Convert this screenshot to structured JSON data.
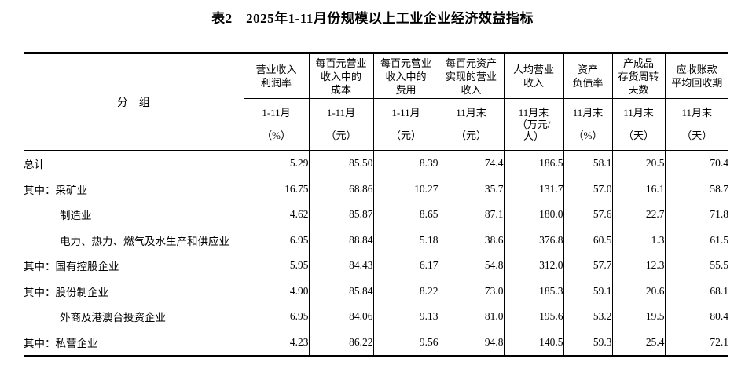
{
  "title": "表2　2025年1-11月份规模以上工业企业经济效益指标",
  "colors": {
    "text": "#000000",
    "border": "#000000",
    "background": "#ffffff"
  },
  "table": {
    "group_header": "分　组",
    "columns": [
      {
        "name": "营业收入\n利润率",
        "period": "1-11月",
        "unit": "（%）"
      },
      {
        "name": "每百元营业\n收入中的\n成本",
        "period": "1-11月",
        "unit": "（元）"
      },
      {
        "name": "每百元营业\n收入中的\n费用",
        "period": "1-11月",
        "unit": "（元）"
      },
      {
        "name": "每百元资产\n实现的营业\n收入",
        "period": "11月末",
        "unit": "（元）"
      },
      {
        "name": "人均营业\n收入",
        "period": "11月末",
        "unit": "（万元/\n人）"
      },
      {
        "name": "资产\n负债率",
        "period": "11月末",
        "unit": "（%）"
      },
      {
        "name": "产成品\n存货周转\n天数",
        "period": "11月末",
        "unit": "（天）"
      },
      {
        "name": "应收账款\n平均回收期",
        "period": "11月末",
        "unit": "（天）"
      }
    ],
    "rows": [
      {
        "label": "总计",
        "indent": false,
        "values": [
          "5.29",
          "85.50",
          "8.39",
          "74.4",
          "186.5",
          "58.1",
          "20.5",
          "70.4"
        ]
      },
      {
        "label": "其中：采矿业",
        "indent": false,
        "values": [
          "16.75",
          "68.86",
          "10.27",
          "35.7",
          "131.7",
          "57.0",
          "16.1",
          "58.7"
        ]
      },
      {
        "label": "制造业",
        "indent": true,
        "values": [
          "4.62",
          "85.87",
          "8.65",
          "87.1",
          "180.0",
          "57.6",
          "22.7",
          "71.8"
        ]
      },
      {
        "label": "电力、热力、燃气及水生产和供应业",
        "indent": true,
        "values": [
          "6.95",
          "88.84",
          "5.18",
          "38.6",
          "376.8",
          "60.5",
          "1.3",
          "61.5"
        ]
      },
      {
        "label": "其中：国有控股企业",
        "indent": false,
        "values": [
          "5.95",
          "84.43",
          "6.17",
          "54.8",
          "312.0",
          "57.7",
          "12.3",
          "55.5"
        ]
      },
      {
        "label": "其中：股份制企业",
        "indent": false,
        "values": [
          "4.90",
          "85.84",
          "8.22",
          "73.0",
          "185.3",
          "59.1",
          "20.6",
          "68.1"
        ]
      },
      {
        "label": "外商及港澳台投资企业",
        "indent": true,
        "values": [
          "6.95",
          "84.06",
          "9.13",
          "81.0",
          "195.6",
          "53.2",
          "19.5",
          "80.4"
        ]
      },
      {
        "label": "其中：私营企业",
        "indent": false,
        "values": [
          "4.23",
          "86.22",
          "9.56",
          "94.8",
          "140.5",
          "59.3",
          "25.4",
          "72.1"
        ]
      }
    ]
  }
}
